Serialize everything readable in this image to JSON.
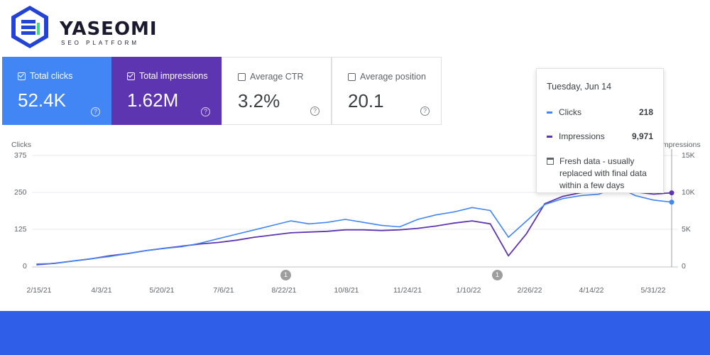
{
  "brand": {
    "name": "YASEOMI",
    "tagline": "SEO PLATFORM"
  },
  "colors": {
    "clicks": "#4285f4",
    "impressions": "#5e35b1",
    "footer": "#2f5fe8"
  },
  "metrics": [
    {
      "label": "Total clicks",
      "value": "52.4K",
      "checked": true
    },
    {
      "label": "Total impressions",
      "value": "1.62M",
      "checked": true
    },
    {
      "label": "Average CTR",
      "value": "3.2%",
      "checked": false
    },
    {
      "label": "Average position",
      "value": "20.1",
      "checked": false
    }
  ],
  "help_glyph": "?",
  "tooltip": {
    "date": "Tuesday, Jun 14",
    "rows": [
      {
        "name": "Clicks",
        "value": "218"
      },
      {
        "name": "Impressions",
        "value": "9,971"
      }
    ],
    "note": "Fresh data - usually replaced with final data within a few days"
  },
  "markers": [
    "1",
    "1"
  ],
  "chart_data": {
    "type": "line",
    "ylabel": "Clicks",
    "y2label": "Impressions",
    "y_ticks": [
      "375",
      "250",
      "125",
      "0"
    ],
    "y2_ticks": [
      "15K",
      "10K",
      "5K",
      "0"
    ],
    "ylim": [
      0,
      375
    ],
    "y2lim": [
      0,
      15000
    ],
    "x_ticks": [
      "2/15/21",
      "4/3/21",
      "5/20/21",
      "7/6/21",
      "8/22/21",
      "10/8/21",
      "11/24/21",
      "1/10/22",
      "2/26/22",
      "4/14/22",
      "5/31/22"
    ],
    "grid": true,
    "series": [
      {
        "name": "Clicks",
        "values": [
          10,
          12,
          20,
          28,
          35,
          45,
          55,
          62,
          68,
          80,
          95,
          110,
          125,
          140,
          155,
          145,
          150,
          160,
          150,
          140,
          135,
          160,
          175,
          185,
          200,
          190,
          100,
          155,
          210,
          230,
          240,
          245,
          270,
          240,
          225,
          218
        ]
      },
      {
        "name": "Impressions",
        "values": [
          300,
          500,
          800,
          1100,
          1500,
          1800,
          2200,
          2500,
          2800,
          3100,
          3300,
          3600,
          4000,
          4300,
          4600,
          4700,
          4800,
          5000,
          5000,
          4900,
          5000,
          5200,
          5500,
          5900,
          6200,
          5800,
          1500,
          4500,
          8500,
          9500,
          10000,
          10200,
          10500,
          10100,
          9800,
          9971
        ]
      }
    ]
  }
}
